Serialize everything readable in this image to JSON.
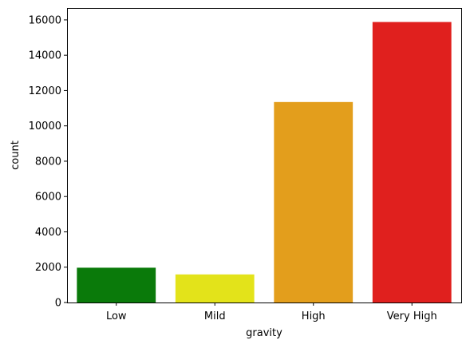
{
  "chart_data": {
    "type": "bar",
    "title": "",
    "xlabel": "gravity",
    "ylabel": "count",
    "categories": [
      "Low",
      "Mild",
      "High",
      "Very High"
    ],
    "values": [
      1970,
      1590,
      11350,
      15880
    ],
    "colors": [
      "#0a7a0a",
      "#e3e31a",
      "#e39e1c",
      "#e0201e"
    ],
    "ylim": [
      0,
      16674
    ],
    "yticks": [
      0,
      2000,
      4000,
      6000,
      8000,
      10000,
      12000,
      14000,
      16000
    ],
    "grid": false,
    "legend": "none"
  }
}
